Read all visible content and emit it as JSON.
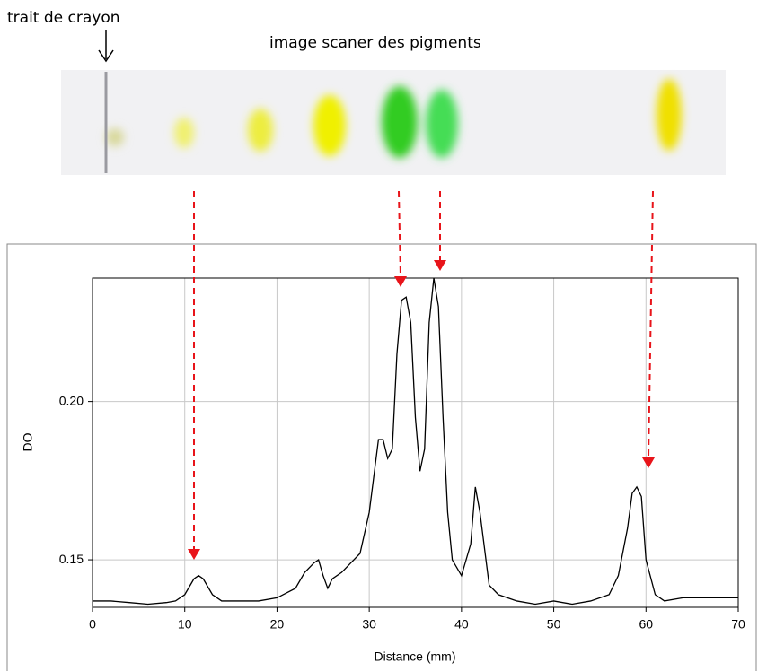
{
  "chart_data": {
    "type": "line",
    "annotations": [
      "trait de crayon",
      "image scaner des pigments"
    ],
    "y_label": "DO",
    "x_label": "Distance (mm)",
    "xlim": [
      0,
      70
    ],
    "xticks": [
      0,
      10,
      20,
      30,
      40,
      50,
      60,
      70
    ],
    "ylim": [
      0.135,
      0.239
    ],
    "yticks": [
      {
        "value": 0.15,
        "label": "0.15"
      },
      {
        "value": 0.2,
        "label": "0.20"
      }
    ],
    "grid": true,
    "series": [
      {
        "color": "#000000",
        "x": [
          0,
          2,
          4,
          6,
          8,
          9,
          10,
          11,
          11.5,
          12,
          13,
          14,
          16,
          18,
          20,
          22,
          23,
          24,
          24.5,
          25,
          25.5,
          26,
          27,
          28,
          29,
          30,
          31,
          31.5,
          32,
          32.5,
          33,
          33.5,
          34,
          34.5,
          35,
          35.5,
          36,
          36.5,
          37,
          37.5,
          38,
          38.5,
          39,
          40,
          41,
          41.5,
          42,
          43,
          44,
          46,
          48,
          50,
          52,
          54,
          56,
          57,
          58,
          58.5,
          59,
          59.5,
          60,
          61,
          62,
          64,
          66,
          68,
          70
        ],
        "values": [
          0.137,
          0.137,
          0.1365,
          0.136,
          0.1365,
          0.137,
          0.139,
          0.144,
          0.145,
          0.144,
          0.139,
          0.137,
          0.137,
          0.137,
          0.138,
          0.141,
          0.146,
          0.149,
          0.15,
          0.145,
          0.141,
          0.144,
          0.146,
          0.149,
          0.152,
          0.165,
          0.188,
          0.188,
          0.182,
          0.185,
          0.215,
          0.232,
          0.233,
          0.225,
          0.195,
          0.178,
          0.185,
          0.225,
          0.239,
          0.23,
          0.195,
          0.165,
          0.15,
          0.145,
          0.155,
          0.173,
          0.165,
          0.142,
          0.139,
          0.137,
          0.136,
          0.137,
          0.136,
          0.137,
          0.139,
          0.145,
          0.16,
          0.171,
          0.173,
          0.17,
          0.15,
          0.139,
          0.137,
          0.138,
          0.138,
          0.138,
          0.138
        ]
      }
    ]
  }
}
